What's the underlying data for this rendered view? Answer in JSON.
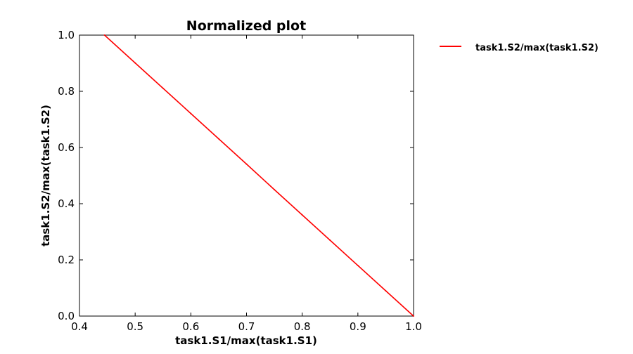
{
  "chart_data": {
    "type": "line",
    "title": "Normalized plot",
    "xlabel": "task1.S1/max(task1.S1)",
    "ylabel": "task1.S2/max(task1.S2)",
    "xlim": [
      0.4,
      1.0
    ],
    "ylim": [
      0.0,
      1.0
    ],
    "xticks": [
      "0.4",
      "0.5",
      "0.6",
      "0.7",
      "0.8",
      "0.9",
      "1.0"
    ],
    "yticks": [
      "0.0",
      "0.2",
      "0.4",
      "0.6",
      "0.8",
      "1.0"
    ],
    "grid": false,
    "legend_position": "outside-right-top",
    "series": [
      {
        "name": "task1.S2/max(task1.S2)",
        "color": "#ff0000",
        "x": [
          0.445,
          0.5,
          0.55,
          0.6,
          0.65,
          0.7,
          0.75,
          0.8,
          0.85,
          0.9,
          0.95,
          1.0
        ],
        "y": [
          1.0,
          0.901,
          0.811,
          0.721,
          0.631,
          0.541,
          0.45,
          0.36,
          0.27,
          0.18,
          0.09,
          0.0
        ]
      }
    ]
  }
}
